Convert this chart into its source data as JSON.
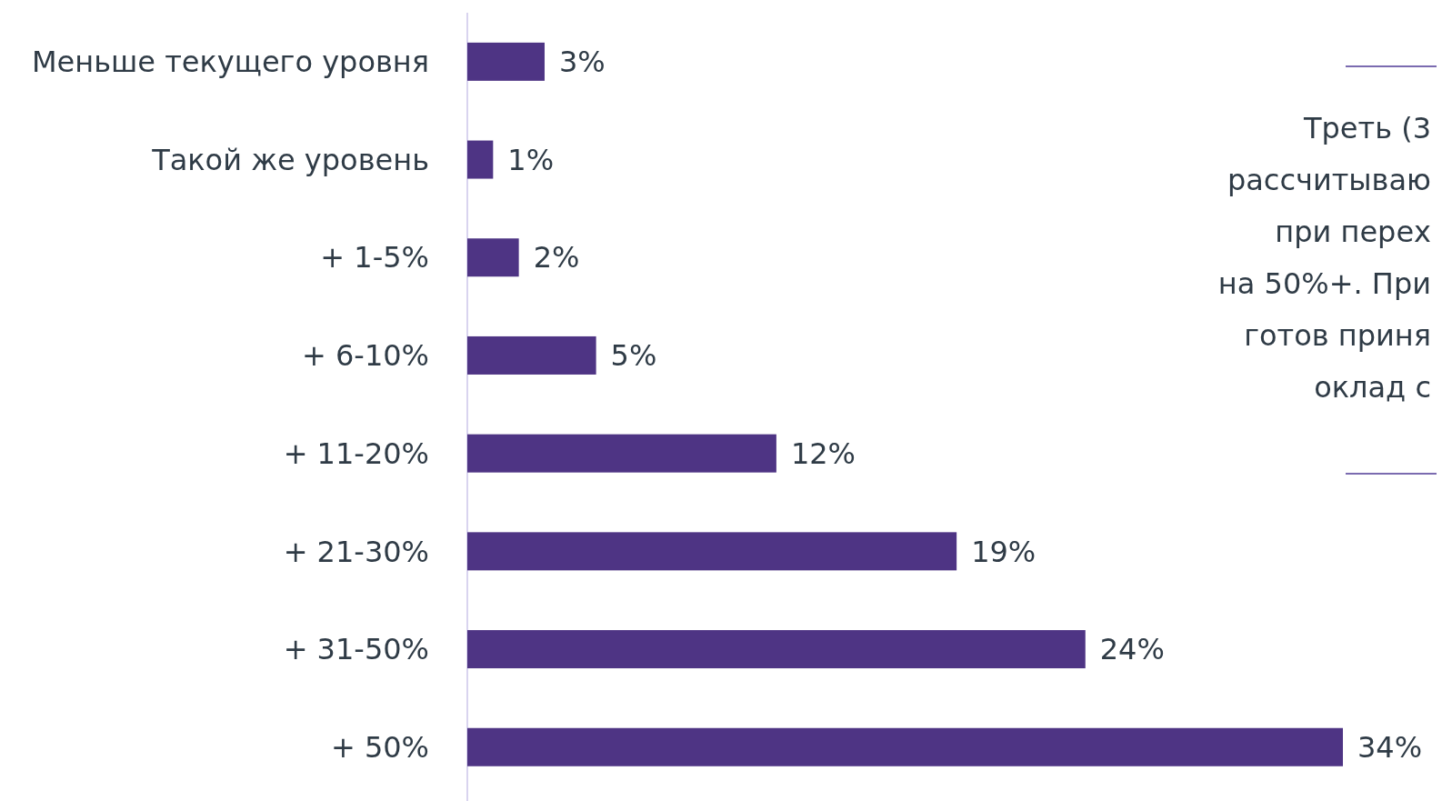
{
  "chart_data": {
    "type": "bar",
    "orientation": "horizontal",
    "categories": [
      "Меньше текущего уровня",
      "Такой же уровень",
      "+ 1-5%",
      "+ 6-10%",
      "+ 11-20%",
      "+ 21-30%",
      "+ 31-50%",
      "+ 50%"
    ],
    "values": [
      3,
      1,
      2,
      5,
      12,
      19,
      24,
      34
    ],
    "color": "#4e3484",
    "value_labels": [
      "3%",
      "1%",
      "2%",
      "5%",
      "12%",
      "19%",
      "24%",
      "34%"
    ],
    "annotations": [
      "Треть (3\nрассчитываю\nпри перех\nна 50%+. При\nготов приня\nоклад с"
    ]
  }
}
